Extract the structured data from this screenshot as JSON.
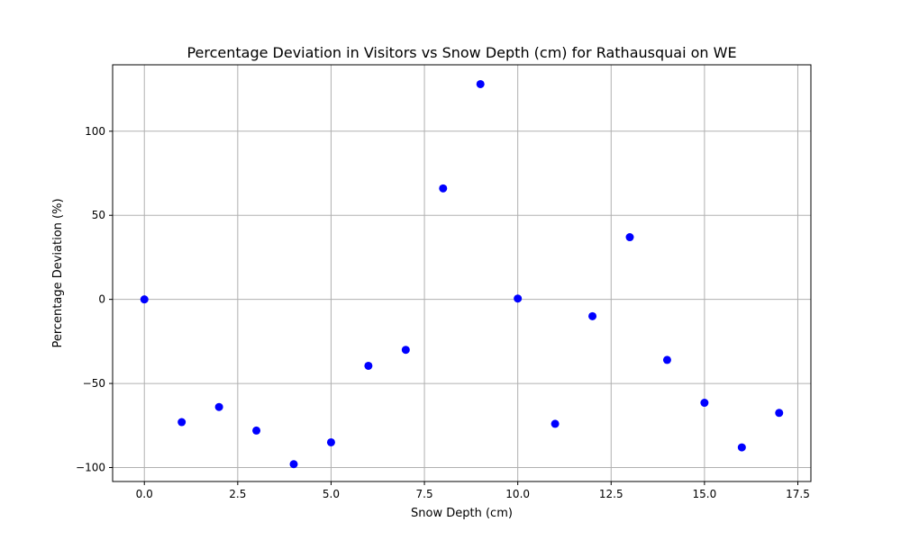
{
  "chart_data": {
    "type": "scatter",
    "title": "Percentage Deviation in Visitors vs Snow Depth (cm) for Rathausquai on WE",
    "xlabel": "Snow Depth (cm)",
    "ylabel": "Percentage Deviation (%)",
    "xlim": [
      -0.85,
      17.85
    ],
    "ylim": [
      -108.3,
      139.5
    ],
    "x_ticks": [
      0.0,
      2.5,
      5.0,
      7.5,
      10.0,
      12.5,
      15.0,
      17.5
    ],
    "x_tick_labels": [
      "0.0",
      "2.5",
      "5.0",
      "7.5",
      "10.0",
      "12.5",
      "15.0",
      "17.5"
    ],
    "y_ticks": [
      -100,
      -50,
      0,
      50,
      100
    ],
    "y_tick_labels": [
      "−100",
      "−50",
      "0",
      "50",
      "100"
    ],
    "grid": true,
    "marker_color": "#0000ff",
    "grid_color": "#b0b0b0",
    "series": [
      {
        "x": [
          0,
          1,
          2,
          3,
          4,
          5,
          6,
          7,
          8,
          9,
          10,
          11,
          12,
          13,
          14,
          15,
          16,
          17
        ],
        "y": [
          0,
          -73,
          -64,
          -78,
          -98,
          -85,
          -39.5,
          -30,
          66,
          128,
          0.5,
          -74,
          -10,
          37,
          -36,
          -61.5,
          -88,
          -67.5
        ]
      }
    ]
  }
}
